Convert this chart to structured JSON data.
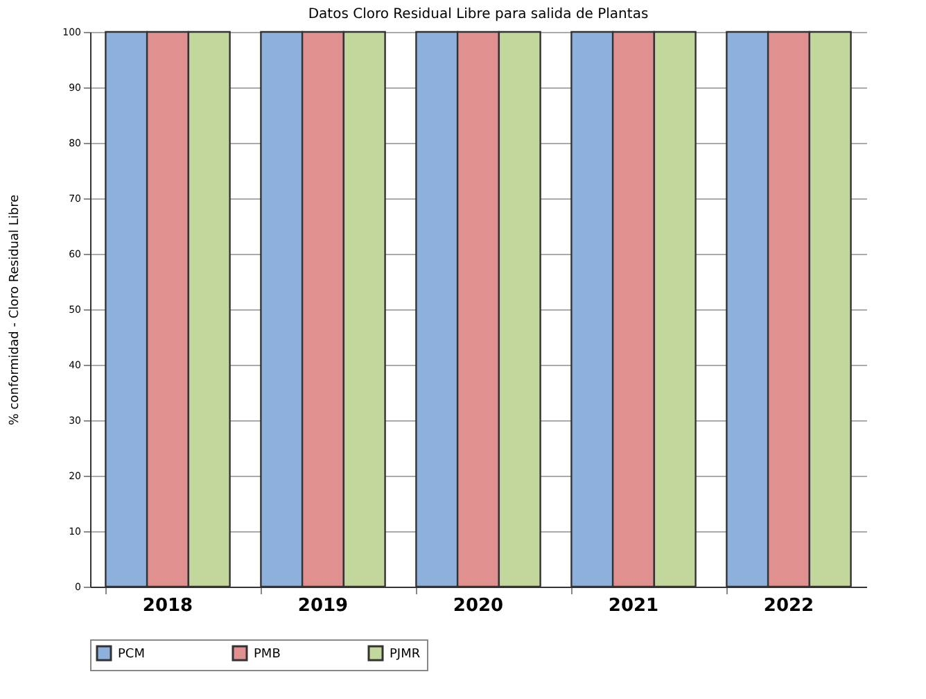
{
  "chart_data": {
    "type": "bar",
    "title": "Datos Cloro Residual Libre para salida de Plantas",
    "ylabel": "% conformidad - Cloro Residual Libre",
    "categories": [
      "2018",
      "2019",
      "2020",
      "2021",
      "2022"
    ],
    "series": [
      {
        "name": "PCM",
        "color": "#8eb1dc",
        "values": [
          100,
          100,
          100,
          100,
          100
        ]
      },
      {
        "name": "PMB",
        "color": "#e0908f",
        "values": [
          100,
          100,
          100,
          100,
          100
        ]
      },
      {
        "name": "PJMR",
        "color": "#c3d69b",
        "values": [
          100,
          100,
          100,
          100,
          100
        ]
      }
    ],
    "ylim": [
      0,
      100
    ],
    "yticks": [
      0,
      10,
      20,
      30,
      40,
      50,
      60,
      70,
      80,
      90,
      100
    ],
    "grid": true,
    "legend": "bottom"
  }
}
